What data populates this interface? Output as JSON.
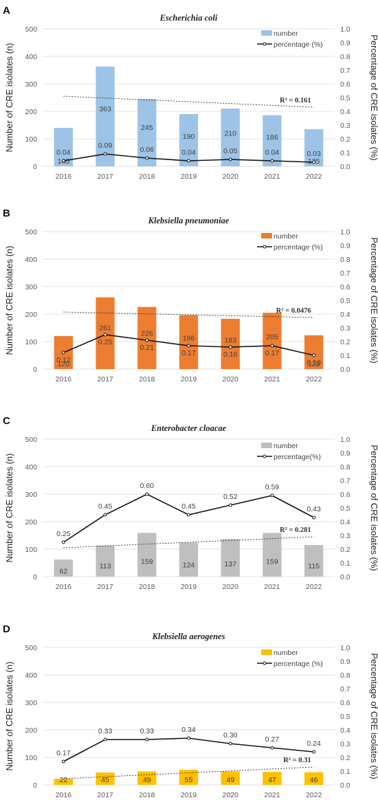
{
  "chart_data": [
    {
      "panel": "A",
      "type": "bar",
      "title": "Escherichia coli",
      "categories": [
        "2016",
        "2017",
        "2018",
        "2019",
        "2020",
        "2021",
        "2022"
      ],
      "ylabel": "Number of  CRE isolates (n)",
      "y2label": "Percentage of CRE isolates (%)",
      "ylim": [
        0,
        500
      ],
      "y2lim": [
        0,
        1.0
      ],
      "yticks": [
        "0",
        "100",
        "200",
        "300",
        "400",
        "500"
      ],
      "y2ticks": [
        "0.0",
        "0.1",
        "0.2",
        "0.3",
        "0.4",
        "0.5",
        "0.6",
        "0.7",
        "0.8",
        "0.9",
        "1.0"
      ],
      "bar_color": "#9DC3E6",
      "series": [
        {
          "name": "number",
          "kind": "bar",
          "values": [
            140,
            363,
            245,
            190,
            210,
            186,
            135
          ],
          "labels": [
            "140",
            "363",
            "245",
            "190",
            "210",
            "186",
            "135"
          ]
        },
        {
          "name": "percentage (%)",
          "kind": "line",
          "axis": "right",
          "values": [
            0.04,
            0.09,
            0.06,
            0.04,
            0.05,
            0.04,
            0.03
          ],
          "labels": [
            "0.04",
            "0.09",
            "0.06",
            "0.04",
            "0.05",
            "0.04",
            "0.03"
          ]
        }
      ],
      "trendline": {
        "start": 0.51,
        "end": 0.43,
        "label": "R² = 0.161"
      },
      "legend": "top-right",
      "grid": true
    },
    {
      "panel": "B",
      "type": "bar",
      "title": "Klebsiella pneumoniae",
      "categories": [
        "2016",
        "2017",
        "2018",
        "2019",
        "2020",
        "2021",
        "2022"
      ],
      "ylabel": "Number of  CRE isolates (n)",
      "y2label": "Percentage of CRE isolates (%)",
      "ylim": [
        0,
        500
      ],
      "y2lim": [
        0,
        1.0
      ],
      "yticks": [
        "0",
        "100",
        "200",
        "300",
        "400",
        "500"
      ],
      "y2ticks": [
        "0.0",
        "0.1",
        "0.2",
        "0.3",
        "0.4",
        "0.5",
        "0.6",
        "0.7",
        "0.8",
        "0.9",
        "1.0"
      ],
      "bar_color": "#ED7D31",
      "series": [
        {
          "name": "number",
          "kind": "bar",
          "values": [
            120,
            261,
            226,
            196,
            183,
            205,
            123
          ],
          "labels": [
            "120",
            "261",
            "226",
            "196",
            "183",
            "205",
            "123"
          ]
        },
        {
          "name": "percentage (%)",
          "kind": "line",
          "axis": "right",
          "values": [
            0.12,
            0.25,
            0.21,
            0.17,
            0.16,
            0.17,
            0.1
          ],
          "labels": [
            "0.12",
            "0.25",
            "0.21",
            "0.17",
            "0.16",
            "0.17",
            "0.10"
          ]
        }
      ],
      "trendline": {
        "start": 0.415,
        "end": 0.375,
        "label": "R² = 0.0476"
      },
      "legend": "top-right",
      "grid": true
    },
    {
      "panel": "C",
      "type": "bar",
      "title": "Enterobacter cloacae",
      "categories": [
        "2016",
        "2017",
        "2018",
        "2019",
        "2020",
        "2021",
        "2022"
      ],
      "ylabel": "Number of  CRE isolates (n)",
      "y2label": "Percentage of CRE isolates (%)",
      "ylim": [
        0,
        500
      ],
      "y2lim": [
        0,
        1.0
      ],
      "yticks": [
        "0",
        "100",
        "200",
        "300",
        "400",
        "500"
      ],
      "y2ticks": [
        "0.0",
        "0.1",
        "0.2",
        "0.3",
        "0.4",
        "0.5",
        "0.6",
        "0.7",
        "0.8",
        "0.9",
        "1.0"
      ],
      "bar_color": "#BFBFBF",
      "series": [
        {
          "name": "number",
          "kind": "bar",
          "values": [
            62,
            113,
            159,
            124,
            137,
            159,
            115
          ],
          "labels": [
            "62",
            "113",
            "159",
            "124",
            "137",
            "159",
            "115"
          ]
        },
        {
          "name": "percentage(%)",
          "kind": "line",
          "axis": "right",
          "values": [
            0.25,
            0.45,
            0.6,
            0.45,
            0.52,
            0.59,
            0.43
          ],
          "labels": [
            "0.25",
            "0.45",
            "0.60",
            "0.45",
            "0.52",
            "0.59",
            "0.43"
          ]
        }
      ],
      "trendline": {
        "start": 0.21,
        "end": 0.29,
        "label": "R² = 0.281"
      },
      "legend": "top-right",
      "grid": true
    },
    {
      "panel": "D",
      "type": "bar",
      "title": "Klebsiella aerogenes",
      "categories": [
        "2016",
        "2017",
        "2018",
        "2019",
        "2020",
        "2021",
        "2022"
      ],
      "ylabel": "Number of  CRE isolates (n)",
      "y2label": "Percentage of CRE isolates (%)",
      "ylim": [
        0,
        500
      ],
      "y2lim": [
        0,
        1.0
      ],
      "yticks": [
        "0",
        "100",
        "200",
        "300",
        "400",
        "500"
      ],
      "y2ticks": [
        "0.0",
        "0.1",
        "0.2",
        "0.3",
        "0.4",
        "0.5",
        "0.6",
        "0.7",
        "0.8",
        "0.9",
        "1.0"
      ],
      "bar_color": "#FFC000",
      "series": [
        {
          "name": "number",
          "kind": "bar",
          "values": [
            22,
            45,
            49,
            55,
            49,
            47,
            46
          ],
          "labels": [
            "22",
            "45",
            "49",
            "55",
            "49",
            "47",
            "46"
          ]
        },
        {
          "name": "percentage (%)",
          "kind": "line",
          "axis": "right",
          "values": [
            0.17,
            0.33,
            0.33,
            0.34,
            0.3,
            0.27,
            0.24
          ],
          "labels": [
            "0.17",
            "0.33",
            "0.33",
            "0.34",
            "0.30",
            "0.27",
            "0.24"
          ]
        }
      ],
      "trendline": {
        "start": 0.045,
        "end": 0.13,
        "label": "R² = 0.31"
      },
      "legend": "top-right",
      "grid": true
    }
  ]
}
